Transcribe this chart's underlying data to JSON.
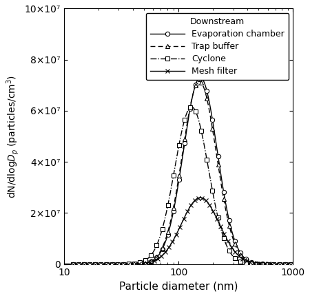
{
  "title": "",
  "xlabel": "Particle diameter (nm)",
  "legend_title": "Downstream",
  "legend_entries": [
    "Evaporation chamber",
    "Trap buffer",
    "Cyclone",
    "Mesh filter"
  ],
  "xscale": "log",
  "xlim": [
    10,
    1000
  ],
  "ylim": [
    0,
    100000000.0
  ],
  "yticks": [
    0,
    20000000.0,
    40000000.0,
    60000000.0,
    80000000.0,
    100000000.0
  ],
  "ytick_labels": [
    "0",
    "2×10⁷",
    "4×10⁷",
    "6×10⁷",
    "8×10⁷",
    "10×10⁷"
  ],
  "peak_diameter_evap": 155,
  "peak_diameter_trap": 152,
  "peak_diameter_cyclone": 130,
  "peak_diameter_mesh": 155,
  "peak_value_evap": 73000000.0,
  "peak_value_trap": 71500000.0,
  "peak_value_cyclone": 61500000.0,
  "peak_value_mesh": 26000000.0,
  "sigma_evap": 0.34,
  "sigma_trap": 0.34,
  "sigma_cyclone": 0.34,
  "sigma_mesh": 0.38,
  "color": "#000000",
  "background_color": "#ffffff",
  "marker_count": 40,
  "marker_x_min": 12,
  "marker_x_max": 950
}
